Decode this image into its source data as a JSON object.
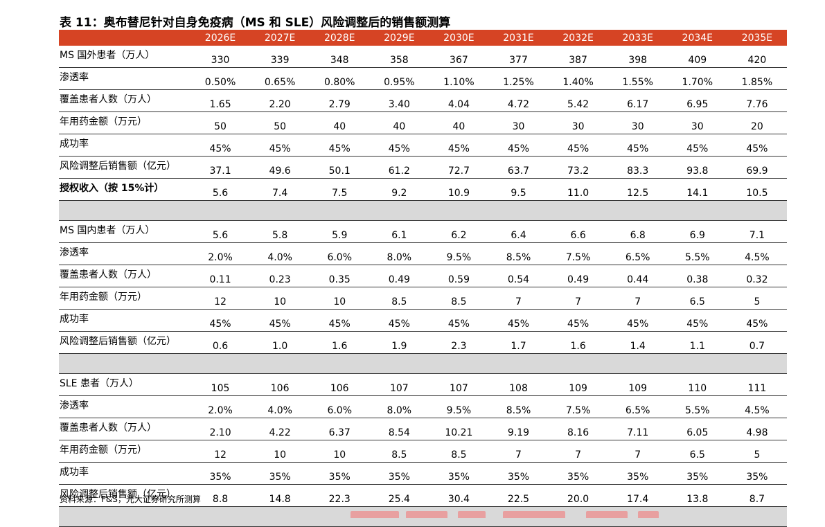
{
  "title": "表 11：奥布替尼针对自身免疫病（MS 和 SLE）风险调整后的销售额测算",
  "columns": [
    "2026E",
    "2027E",
    "2028E",
    "2029E",
    "2030E",
    "2031E",
    "2032E",
    "2033E",
    "2034E",
    "2035E"
  ],
  "rows": [
    {
      "label": "MS 国外患者（万人）",
      "values": [
        "330",
        "339",
        "348",
        "358",
        "367",
        "377",
        "387",
        "398",
        "409",
        "420"
      ]
    },
    {
      "label": "渗透率",
      "values": [
        "0.50%",
        "0.65%",
        "0.80%",
        "0.95%",
        "1.10%",
        "1.25%",
        "1.40%",
        "1.55%",
        "1.70%",
        "1.85%"
      ]
    },
    {
      "label": "覆盖患者人数（万人）",
      "values": [
        "1.65",
        "2.20",
        "2.79",
        "3.40",
        "4.04",
        "4.72",
        "5.42",
        "6.17",
        "6.95",
        "7.76"
      ]
    },
    {
      "label": "年用药金额（万元）",
      "values": [
        "50",
        "50",
        "40",
        "40",
        "40",
        "30",
        "30",
        "30",
        "30",
        "20"
      ]
    },
    {
      "label": "成功率",
      "values": [
        "45%",
        "45%",
        "45%",
        "45%",
        "45%",
        "45%",
        "45%",
        "45%",
        "45%",
        "45%"
      ]
    },
    {
      "label": "风险调整后销售额（亿元）",
      "values": [
        "37.1",
        "49.6",
        "50.1",
        "61.2",
        "72.7",
        "63.7",
        "73.2",
        "83.3",
        "93.8",
        "69.9"
      ]
    },
    {
      "label": "授权收入（按 15%计）",
      "values": [
        "5.6",
        "7.4",
        "7.5",
        "9.2",
        "10.9",
        "9.5",
        "11.0",
        "12.5",
        "14.1",
        "10.5"
      ]
    },
    {
      "label": "MS 国内患者（万人）",
      "values": [
        "5.6",
        "5.8",
        "5.9",
        "6.1",
        "6.2",
        "6.4",
        "6.6",
        "6.8",
        "6.9",
        "7.1"
      ]
    },
    {
      "label": "渗透率",
      "values": [
        "2.0%",
        "4.0%",
        "6.0%",
        "8.0%",
        "9.5%",
        "8.5%",
        "7.5%",
        "6.5%",
        "5.5%",
        "4.5%"
      ]
    },
    {
      "label": "覆盖患者人数（万人）",
      "values": [
        "0.11",
        "0.23",
        "0.35",
        "0.49",
        "0.59",
        "0.54",
        "0.49",
        "0.44",
        "0.38",
        "0.32"
      ]
    },
    {
      "label": "年用药金额（万元）",
      "values": [
        "12",
        "10",
        "10",
        "8.5",
        "8.5",
        "7",
        "7",
        "7",
        "6.5",
        "5"
      ]
    },
    {
      "label": "成功率",
      "values": [
        "45%",
        "45%",
        "45%",
        "45%",
        "45%",
        "45%",
        "45%",
        "45%",
        "45%",
        "45%"
      ]
    },
    {
      "label": "风险调整后销售额（亿元）",
      "values": [
        "0.6",
        "1.0",
        "1.6",
        "1.9",
        "2.3",
        "1.7",
        "1.6",
        "1.4",
        "1.1",
        "0.7"
      ]
    },
    {
      "label": "SLE 患者（万人）",
      "values": [
        "105",
        "106",
        "106",
        "107",
        "107",
        "108",
        "109",
        "109",
        "110",
        "111"
      ]
    },
    {
      "label": "渗透率",
      "values": [
        "2.0%",
        "4.0%",
        "6.0%",
        "8.0%",
        "9.5%",
        "8.5%",
        "7.5%",
        "6.5%",
        "5.5%",
        "4.5%"
      ]
    },
    {
      "label": "覆盖患者人数（万人）",
      "values": [
        "2.10",
        "4.22",
        "6.37",
        "8.54",
        "10.21",
        "9.19",
        "8.16",
        "7.11",
        "6.05",
        "4.98"
      ]
    },
    {
      "label": "年用药金额（万元）",
      "values": [
        "12",
        "10",
        "10",
        "8.5",
        "8.5",
        "7",
        "7",
        "7",
        "6.5",
        "5"
      ]
    },
    {
      "label": "成功率",
      "values": [
        "35%",
        "35%",
        "35%",
        "35%",
        "35%",
        "35%",
        "35%",
        "35%",
        "35%",
        "35%"
      ]
    },
    {
      "label": "风险调整后销售额（亿元）",
      "values": [
        "8.8",
        "14.8",
        "22.3",
        "25.4",
        "30.4",
        "22.5",
        "20.0",
        "17.4",
        "13.8",
        "8.7"
      ]
    }
  ],
  "source": "资料来源：F&S，光大证券研究所测算",
  "colors": {
    "header_bg": "#d64424",
    "separator_bg": "#d9d9d9"
  }
}
